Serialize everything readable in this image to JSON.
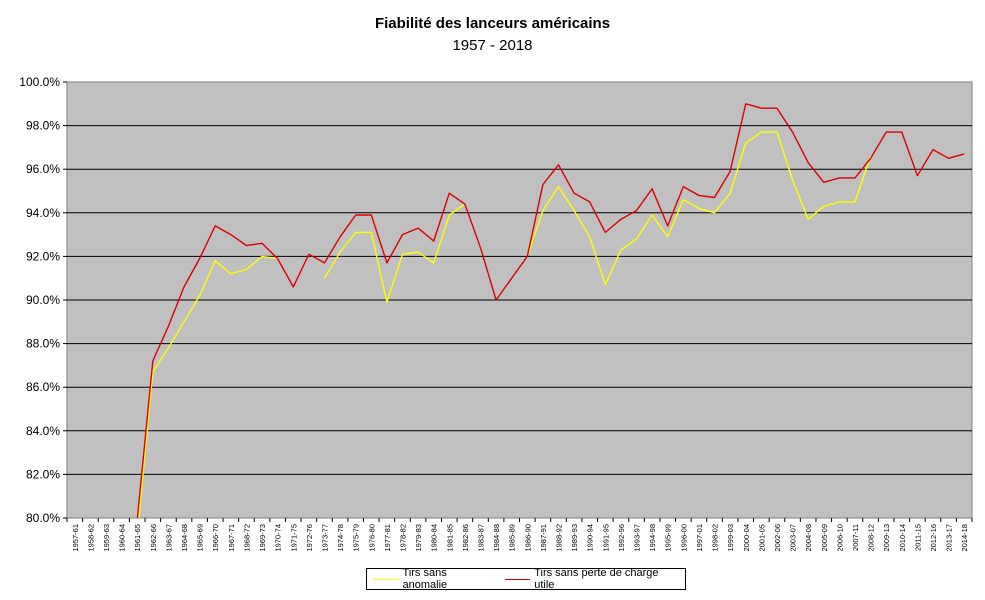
{
  "chart_data": {
    "type": "line",
    "title": "Fiabilité des lanceurs américains",
    "subtitle": "1957 - 2018",
    "x": [
      "1957-61",
      "1958-62",
      "1959-63",
      "1960-64",
      "1961-65",
      "1962-66",
      "1963-67",
      "1964-68",
      "1965-69",
      "1966-70",
      "1967-71",
      "1968-72",
      "1969-73",
      "1970-74",
      "1971-75",
      "1972-76",
      "1973-77",
      "1974-78",
      "1975-79",
      "1976-80",
      "1977-81",
      "1978-82",
      "1979-83",
      "1980-84",
      "1981-85",
      "1982-86",
      "1983-87",
      "1984-88",
      "1985-89",
      "1986-90",
      "1987-91",
      "1988-92",
      "1989-93",
      "1990-94",
      "1991-95",
      "1992-96",
      "1993-97",
      "1994-98",
      "1995-99",
      "1996-00",
      "1997-01",
      "1998-02",
      "1999-03",
      "2000-04",
      "2001-05",
      "2002-06",
      "2003-07",
      "2004-08",
      "2005-09",
      "2006-10",
      "2007-11",
      "2008-12",
      "2009-13",
      "2010-14",
      "2011-15",
      "2012-16",
      "2013-17",
      "2014-18"
    ],
    "ylim": [
      80,
      100
    ],
    "yticks": [
      "80.0%",
      "82.0%",
      "84.0%",
      "86.0%",
      "88.0%",
      "90.0%",
      "92.0%",
      "94.0%",
      "96.0%",
      "98.0%",
      "100.0%"
    ],
    "grid": true,
    "legend_position": "bottom",
    "series": [
      {
        "name": "Tirs sans anomalie",
        "color": "#ffff00",
        "values": [
          null,
          null,
          null,
          null,
          79.2,
          86.7,
          87.8,
          89.0,
          90.2,
          91.8,
          91.2,
          91.4,
          92.0,
          91.9,
          null,
          null,
          91.0,
          92.2,
          93.1,
          93.1,
          89.9,
          92.1,
          92.2,
          91.7,
          93.9,
          94.4,
          null,
          null,
          null,
          92.0,
          94.1,
          95.2,
          94.1,
          92.9,
          90.7,
          92.3,
          92.8,
          93.9,
          92.9,
          94.6,
          94.2,
          94.0,
          94.9,
          97.2,
          97.7,
          97.7,
          95.5,
          93.7,
          94.3,
          94.5,
          94.5,
          96.6,
          null,
          null,
          null,
          null,
          null,
          null
        ]
      },
      {
        "name": "Tirs sans perte de charge utile",
        "color": "#dd0000",
        "values": [
          null,
          null,
          null,
          null,
          79.9,
          87.2,
          88.8,
          90.6,
          91.9,
          93.4,
          93.0,
          92.5,
          92.6,
          91.9,
          90.6,
          92.1,
          91.7,
          92.9,
          93.9,
          93.9,
          91.7,
          93.0,
          93.3,
          92.7,
          94.9,
          94.4,
          92.4,
          90.0,
          91.0,
          92.0,
          95.3,
          96.2,
          94.9,
          94.5,
          93.1,
          93.7,
          94.1,
          95.1,
          93.4,
          95.2,
          94.8,
          94.7,
          95.9,
          99.0,
          98.8,
          98.8,
          97.7,
          96.3,
          95.4,
          95.6,
          95.6,
          96.5,
          97.7,
          97.7,
          95.7,
          96.9,
          96.5,
          96.7
        ]
      }
    ]
  }
}
